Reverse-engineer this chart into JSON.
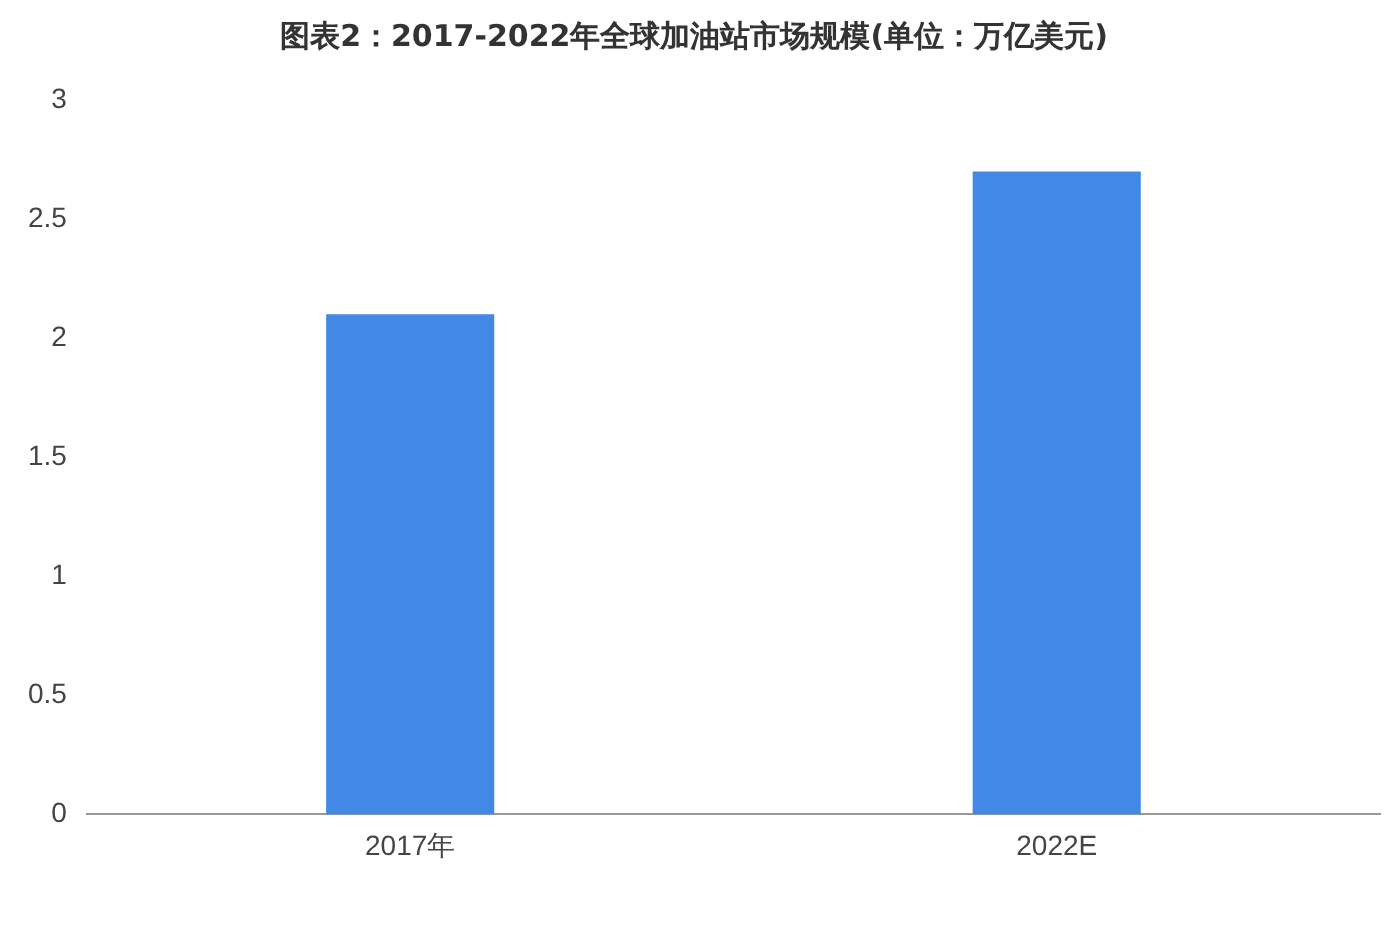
{
  "chart_data": {
    "type": "bar",
    "title": "图表2：2017-2022年全球加油站市场规模(单位：万亿美元)",
    "categories": [
      "2017年",
      "2022E"
    ],
    "values": [
      2.1,
      2.7
    ],
    "color": "#4189e4",
    "ylim": [
      0,
      3
    ],
    "yticks": [
      0,
      0.5,
      1,
      1.5,
      2,
      2.5,
      3
    ],
    "grid": false,
    "legend": false
  }
}
